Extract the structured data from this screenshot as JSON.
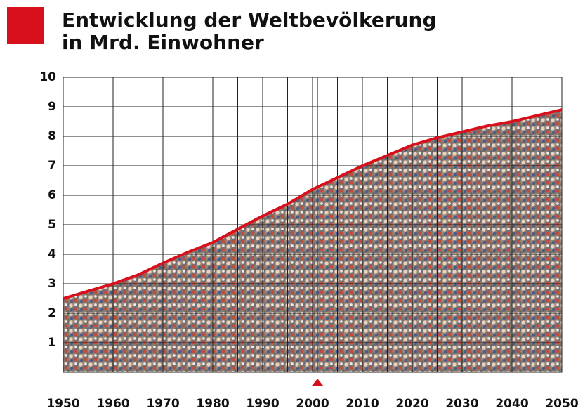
{
  "chart_data": {
    "type": "area",
    "title": "Entwicklung der Weltbevölkerung",
    "subtitle": "in Mrd. Einwohner",
    "x": [
      1950,
      1955,
      1960,
      1965,
      1970,
      1975,
      1980,
      1985,
      1990,
      1995,
      2000,
      2005,
      2010,
      2015,
      2020,
      2025,
      2030,
      2035,
      2040,
      2045,
      2050
    ],
    "values": [
      2.5,
      2.75,
      3.0,
      3.3,
      3.7,
      4.07,
      4.4,
      4.85,
      5.3,
      5.7,
      6.2,
      6.6,
      7.0,
      7.35,
      7.7,
      7.95,
      8.15,
      8.35,
      8.5,
      8.7,
      8.9
    ],
    "color": "#d8101c",
    "xlim": [
      1950,
      2050
    ],
    "xticks": [
      1950,
      1960,
      1970,
      1980,
      1990,
      2000,
      2010,
      2020,
      2030,
      2040,
      2050
    ],
    "ylim": [
      0,
      10
    ],
    "yticks": [
      1,
      2,
      3,
      4,
      5,
      6,
      7,
      8,
      9,
      10
    ],
    "grid": true,
    "highlight_x": 2001
  }
}
